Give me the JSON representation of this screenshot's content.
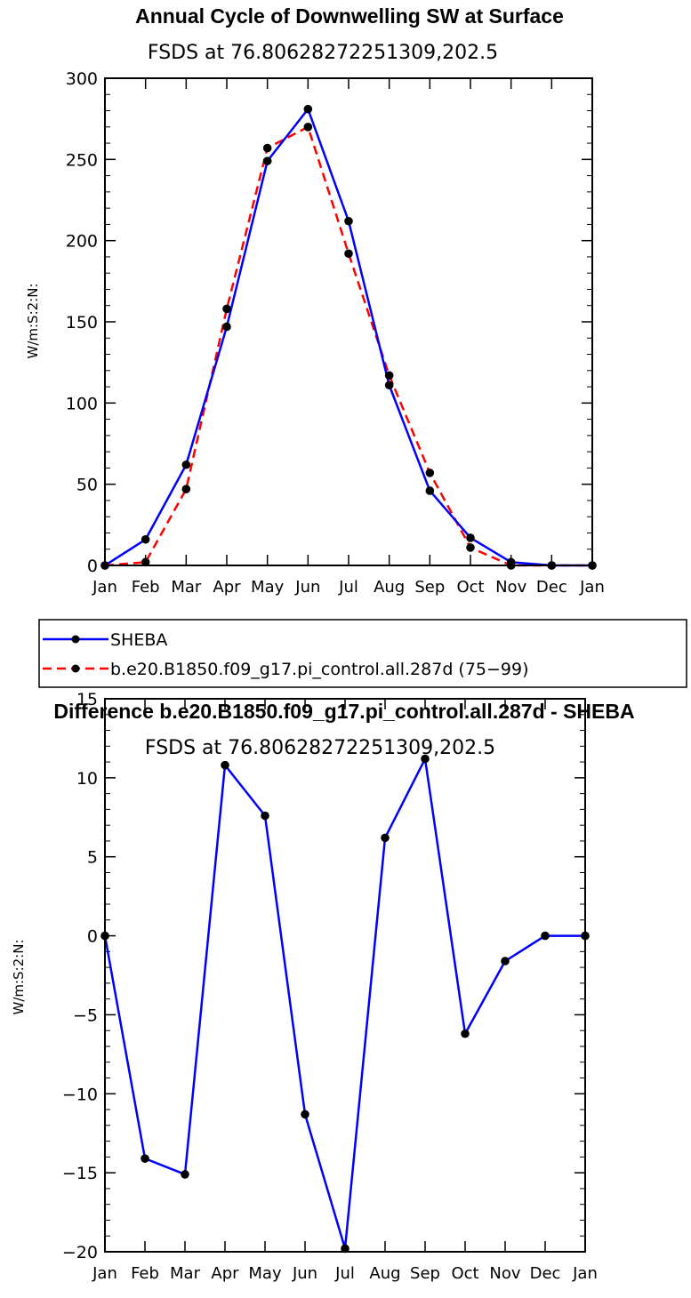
{
  "chart_data": [
    {
      "type": "line",
      "title": "Annual Cycle of Downwelling SW at Surface",
      "subtitle": "FSDS at 76.80628272251309,202.5",
      "ylabel": "W/m:S:2:N:",
      "xlabel": "",
      "ylim": [
        0,
        300
      ],
      "yticks": [
        0,
        50,
        100,
        150,
        200,
        250,
        300
      ],
      "categories": [
        "Jan",
        "Feb",
        "Mar",
        "Apr",
        "May",
        "Jun",
        "Jul",
        "Aug",
        "Sep",
        "Oct",
        "Nov",
        "Dec",
        "Jan"
      ],
      "series": [
        {
          "name": "SHEBA",
          "color": "#0000ff",
          "dash": "solid",
          "values": [
            0,
            16,
            62,
            147,
            249,
            281,
            212,
            111,
            46,
            17,
            2,
            0,
            0
          ]
        },
        {
          "name": "b.e20.B1850.f09_g17.pi_control.all.287d (75−99)",
          "color": "#ff0000",
          "dash": "dashed",
          "values": [
            0,
            2,
            47,
            158,
            257,
            270,
            192,
            117,
            57,
            11,
            0,
            0,
            0
          ]
        }
      ]
    },
    {
      "type": "line",
      "title": "Difference b.e20.B1850.f09_g17.pi_control.all.287d - SHEBA",
      "subtitle": "FSDS at 76.80628272251309,202.5",
      "ylabel": "W/m:S:2:N:",
      "xlabel": "",
      "ylim": [
        -20,
        15
      ],
      "yticks": [
        -20,
        -15,
        -10,
        -5,
        0,
        5,
        10,
        15
      ],
      "ytick_labels": [
        "−20",
        "−15",
        "−10",
        "−5",
        "0",
        "5",
        "10",
        "15"
      ],
      "categories": [
        "Jan",
        "Feb",
        "Mar",
        "Apr",
        "May",
        "Jun",
        "Jul",
        "Aug",
        "Sep",
        "Oct",
        "Nov",
        "Dec",
        "Jan"
      ],
      "series": [
        {
          "name": "Difference",
          "color": "#0000ff",
          "dash": "solid",
          "values": [
            0,
            -14.1,
            -15.1,
            10.8,
            7.6,
            -11.3,
            -19.8,
            6.2,
            11.2,
            -6.2,
            -1.6,
            0,
            0
          ]
        }
      ]
    }
  ]
}
